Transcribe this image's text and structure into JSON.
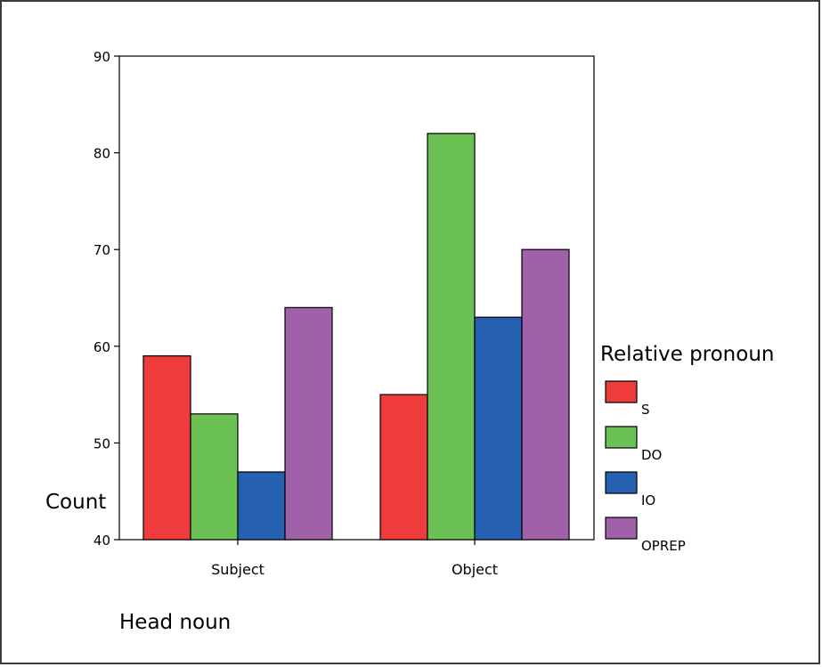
{
  "chart_data": {
    "type": "bar",
    "categories": [
      "Subject",
      "Object"
    ],
    "series": [
      {
        "name": "S",
        "values": [
          59,
          55
        ],
        "color": "#ee3b3b"
      },
      {
        "name": "DO",
        "values": [
          53,
          82
        ],
        "color": "#6cc155"
      },
      {
        "name": "IO",
        "values": [
          47,
          63
        ],
        "color": "#2660b0"
      },
      {
        "name": "OPREP",
        "values": [
          64,
          70
        ],
        "color": "#a061a8"
      }
    ],
    "xlabel": "Head noun",
    "ylabel": "Count",
    "ylim": [
      40,
      90
    ],
    "yticks": [
      "40",
      "50",
      "60",
      "70",
      "80",
      "90"
    ],
    "legend_title": "Relative pronoun",
    "legend_position": "right",
    "grid": false
  }
}
